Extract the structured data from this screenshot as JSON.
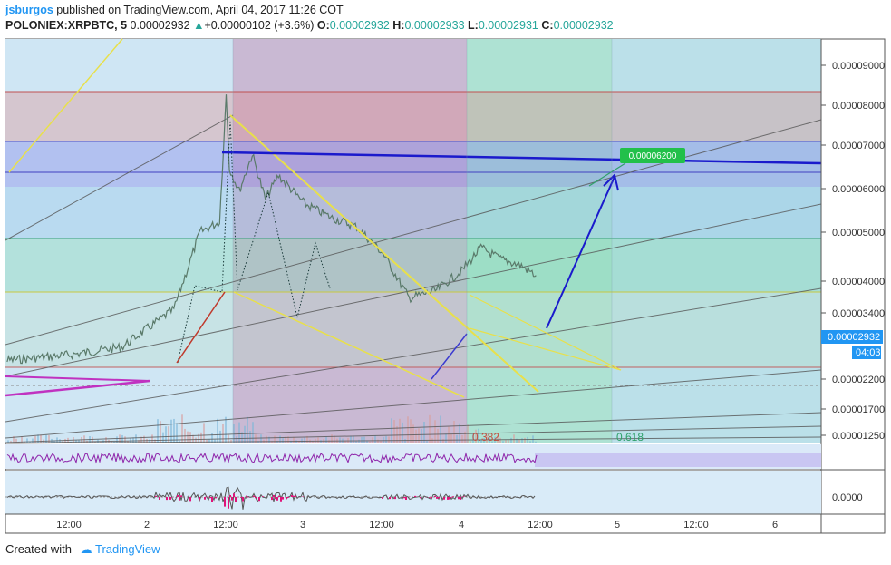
{
  "header": {
    "author": "jsburgos",
    "published_text": " published on TradingView.com, April 04, 2017 11:26 COT",
    "symbol": "POLONIEX:XRPBTC, 5",
    "last": "0.00002932",
    "change": "+0.00000102 (+3.6%)",
    "o_label": "O:",
    "o_value": "0.00002932",
    "h_label": "H:",
    "h_value": "0.00002933",
    "l_label": "L:",
    "l_value": "0.00002931",
    "c_label": "C:",
    "c_value": "0.00002932"
  },
  "footer": {
    "created_with": "Created with",
    "brand": "TradingView"
  },
  "colors": {
    "up": "#26a69a",
    "down": "#ef5350",
    "price_line": "#2196f3",
    "trend_blue": "#1a1acc",
    "trend_yellow": "#e8e04a",
    "trend_magenta": "#c032c0",
    "rsi": "#8e24aa"
  },
  "chart_data": {
    "type": "line",
    "title": "POLONIEX:XRPBTC, 5",
    "x_ticks": [
      "12:00",
      "2",
      "12:00",
      "3",
      "12:00",
      "4",
      "12:00",
      "5",
      "12:00",
      "6"
    ],
    "y_ticks": [
      "0.00009000",
      "0.00008000",
      "0.00007000",
      "0.00006000",
      "0.00005000",
      "0.00004000",
      "0.00003400",
      "0.00002200",
      "0.00001700",
      "0.00001250"
    ],
    "ylim": [
      1.15e-05,
      9.8e-06
    ],
    "y_scale": "log",
    "price_series": {
      "name": "XRPBTC",
      "x": [
        "Apr 01 00:00",
        "Apr 01 12:00",
        "Apr 01 20:00",
        "Apr 02 04:00",
        "Apr 02 08:00",
        "Apr 02 11:00",
        "Apr 02 12:00",
        "Apr 02 12:30",
        "Apr 02 14:00",
        "Apr 02 16:00",
        "Apr 02 18:00",
        "Apr 02 20:00",
        "Apr 03 00:00",
        "Apr 03 04:00",
        "Apr 03 08:00",
        "Apr 03 12:00",
        "Apr 03 16:00",
        "Apr 03 20:00",
        "Apr 04 00:00",
        "Apr 04 03:00",
        "Apr 04 06:00",
        "Apr 04 09:00",
        "Apr 04 11:26"
      ],
      "y": [
        1.85e-05,
        1.92e-05,
        2e-05,
        2.45e-05,
        3.7e-05,
        3.9e-05,
        7.7e-05,
        5.2e-05,
        4.6e-05,
        5.6e-05,
        4.4e-05,
        5e-05,
        4.3e-05,
        4e-05,
        3.8e-05,
        3.3e-05,
        2.6e-05,
        2.7e-05,
        3e-05,
        3.4e-05,
        3.2e-05,
        3.1e-05,
        2.932e-05
      ]
    },
    "current_price_label": "0.00002932",
    "countdown": "04:03",
    "target_label": "0.00006200",
    "fib_labels": [
      "0.382",
      "0.618"
    ],
    "rsi_zero_label": "0.0000",
    "grid": true,
    "legend": "none"
  }
}
